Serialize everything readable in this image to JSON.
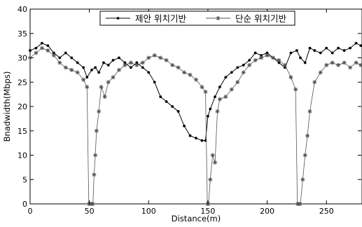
{
  "chart_data": {
    "type": "line",
    "title": "",
    "xlabel": "Distance(m)",
    "ylabel": "Bnadwidth(Mbps)",
    "xlim": [
      0,
      280
    ],
    "ylim": [
      0,
      40
    ],
    "xticks": [
      0,
      50,
      100,
      150,
      200,
      250
    ],
    "yticks": [
      0,
      5,
      10,
      15,
      20,
      25,
      30,
      35,
      40
    ],
    "grid": false,
    "legend_position": "top-center",
    "series": [
      {
        "name": "제안 위치기반",
        "color": "#000000",
        "marker": "dot",
        "x": [
          0,
          5,
          10,
          15,
          20,
          25,
          30,
          35,
          40,
          45,
          48,
          52,
          55,
          58,
          62,
          66,
          70,
          75,
          80,
          85,
          90,
          95,
          100,
          105,
          110,
          115,
          120,
          125,
          130,
          135,
          140,
          145,
          148,
          150,
          152,
          156,
          160,
          165,
          170,
          175,
          180,
          185,
          190,
          195,
          200,
          205,
          210,
          215,
          220,
          225,
          228,
          232,
          236,
          240,
          245,
          250,
          255,
          260,
          265,
          270,
          275,
          279
        ],
        "values": [
          31.5,
          32,
          33,
          32.5,
          31,
          30,
          31,
          30,
          29,
          28,
          26,
          27.5,
          28,
          27,
          29,
          28.5,
          29.5,
          30,
          29,
          28,
          29,
          28,
          27,
          25,
          22,
          21,
          20,
          19,
          16,
          14,
          13.5,
          13,
          13,
          18,
          19.5,
          22,
          24,
          26,
          27,
          28,
          28.5,
          29.5,
          31,
          30.5,
          31,
          30,
          29,
          28,
          31,
          31.5,
          30,
          29,
          32,
          31.5,
          31,
          32,
          31,
          32,
          31.5,
          32,
          33,
          32.5
        ]
      },
      {
        "name": "단순 위치기반",
        "color": "#555555",
        "marker": "star",
        "x": [
          0,
          5,
          10,
          15,
          20,
          25,
          30,
          35,
          40,
          45,
          48,
          49.5,
          50.5,
          52,
          53,
          54,
          55,
          56,
          58,
          60,
          63,
          66,
          70,
          75,
          80,
          85,
          90,
          95,
          100,
          105,
          110,
          115,
          120,
          125,
          130,
          135,
          140,
          145,
          148,
          149.5,
          150.5,
          152,
          154,
          156,
          158,
          160,
          165,
          170,
          175,
          180,
          185,
          190,
          195,
          200,
          205,
          210,
          215,
          220,
          224,
          225.5,
          226.5,
          228,
          230,
          232,
          234,
          236,
          240,
          245,
          250,
          255,
          260,
          265,
          270,
          275,
          279
        ],
        "values": [
          30,
          31,
          32,
          31.5,
          30.5,
          29,
          28,
          27.5,
          27,
          25.5,
          24,
          0,
          0,
          0,
          0,
          6,
          10,
          15,
          19,
          24,
          22,
          25,
          26,
          27.5,
          28.5,
          29,
          28.5,
          29,
          30,
          30.5,
          30,
          29.5,
          28.5,
          28,
          27,
          26.5,
          25.5,
          24,
          23,
          0,
          0,
          5,
          10,
          8.5,
          19,
          21.5,
          22,
          23.5,
          25,
          27,
          28.5,
          29.5,
          30,
          30.5,
          30,
          29.5,
          28.5,
          26,
          23.5,
          0,
          0,
          0,
          5,
          10,
          14,
          19,
          25,
          27,
          28.5,
          29,
          28.5,
          29,
          28,
          29,
          28.5
        ]
      }
    ]
  }
}
